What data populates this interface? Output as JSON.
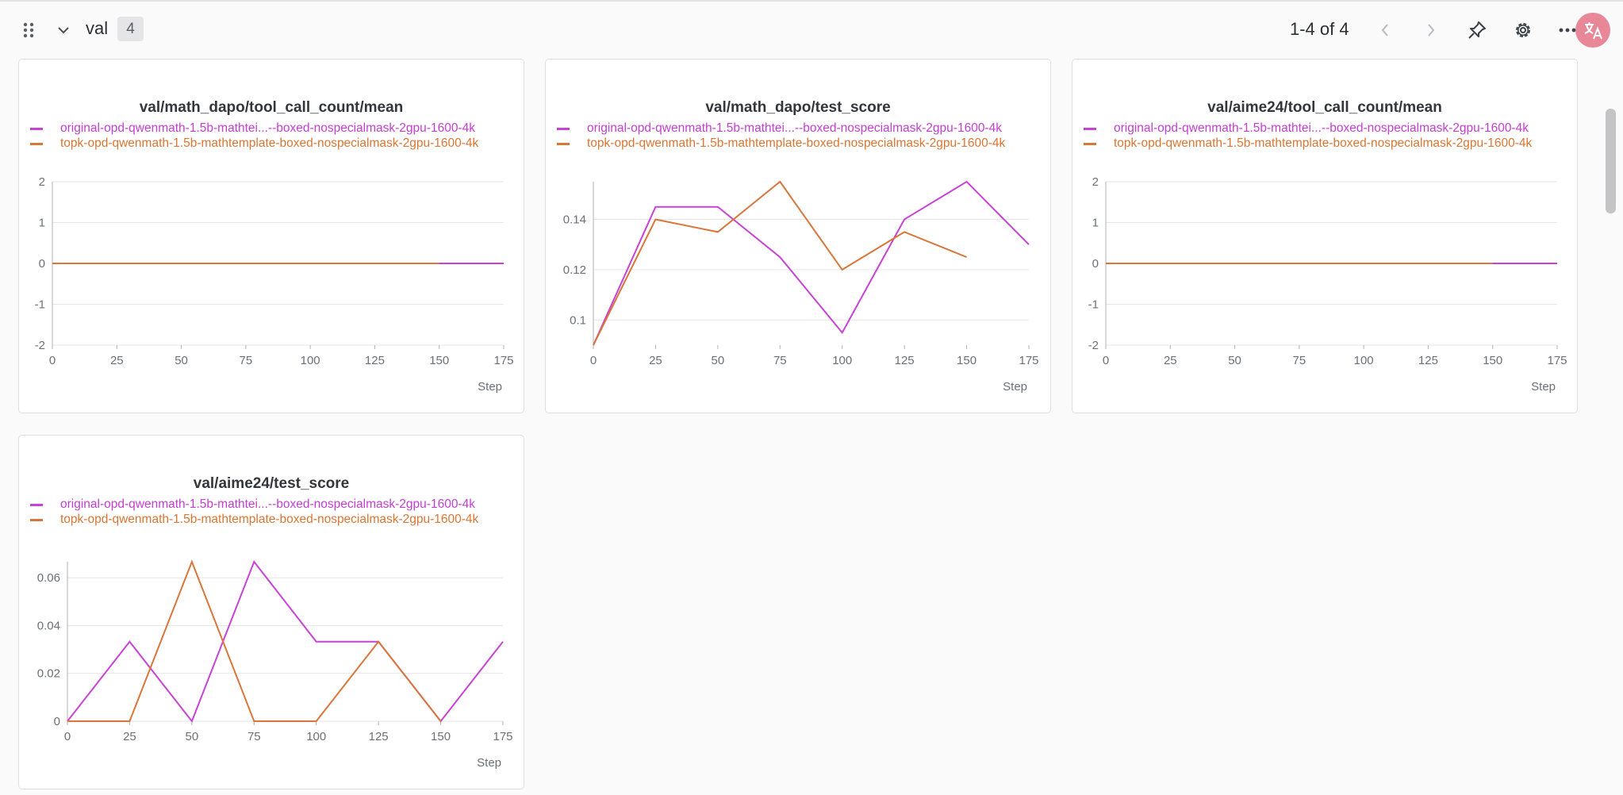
{
  "header": {
    "section_title": "val",
    "section_count": "4",
    "pagination_text": "1-4 of 4",
    "icons": [
      "drag-handle-icon",
      "chevron-down-icon",
      "chevron-left-icon",
      "chevron-right-icon",
      "pin-icon",
      "gear-icon",
      "more-icon",
      "translate-icon"
    ]
  },
  "colors": {
    "series0": "#c942d6",
    "series1": "#d9773a",
    "grid": "#e6e6e9",
    "axis": "#aeb2b8"
  },
  "series_names": [
    "original-opd-qwenmath-1.5b-mathtei...‑-boxed-nospecialmask-2gpu-1600-4k",
    "topk-opd-qwenmath-1.5b-mathtemplate-boxed-nospecialmask-2gpu-1600-4k"
  ],
  "chart_data": [
    {
      "type": "line",
      "title": "val/math_dapo/tool_call_count/mean",
      "xlabel": "Step",
      "xlim": [
        0,
        175
      ],
      "xticks": [
        0,
        25,
        50,
        75,
        100,
        125,
        150,
        175
      ],
      "ylim": [
        -2,
        2
      ],
      "yticks": [
        {
          "v": -2,
          "label": "-2"
        },
        {
          "v": -1,
          "label": "-1"
        },
        {
          "v": 0,
          "label": "0"
        },
        {
          "v": 1,
          "label": "1"
        },
        {
          "v": 2,
          "label": "2"
        }
      ],
      "legend": "top",
      "grid": true,
      "series": [
        {
          "x": [
            0,
            25,
            50,
            75,
            100,
            125,
            150,
            175
          ],
          "y": [
            0,
            0,
            0,
            0,
            0,
            0,
            0,
            0
          ]
        },
        {
          "x": [
            0,
            25,
            50,
            75,
            100,
            125,
            150
          ],
          "y": [
            0,
            0,
            0,
            0,
            0,
            0,
            0
          ]
        }
      ]
    },
    {
      "type": "line",
      "title": "val/math_dapo/test_score",
      "xlabel": "Step",
      "xlim": [
        0,
        175
      ],
      "xticks": [
        0,
        25,
        50,
        75,
        100,
        125,
        150,
        175
      ],
      "ylim": [
        0.09,
        0.155
      ],
      "yticks": [
        {
          "v": 0.1,
          "label": "0.1"
        },
        {
          "v": 0.12,
          "label": "0.12"
        },
        {
          "v": 0.14,
          "label": "0.14"
        }
      ],
      "legend": "top",
      "grid": true,
      "series": [
        {
          "x": [
            0,
            25,
            50,
            75,
            100,
            125,
            150,
            175
          ],
          "y": [
            0.09,
            0.145,
            0.145,
            0.125,
            0.095,
            0.14,
            0.155,
            0.13
          ]
        },
        {
          "x": [
            0,
            25,
            50,
            75,
            100,
            125,
            150
          ],
          "y": [
            0.09,
            0.14,
            0.135,
            0.155,
            0.12,
            0.135,
            0.125
          ]
        }
      ]
    },
    {
      "type": "line",
      "title": "val/aime24/tool_call_count/mean",
      "xlabel": "Step",
      "xlim": [
        0,
        175
      ],
      "xticks": [
        0,
        25,
        50,
        75,
        100,
        125,
        150,
        175
      ],
      "ylim": [
        -2,
        2
      ],
      "yticks": [
        {
          "v": -2,
          "label": "-2"
        },
        {
          "v": -1,
          "label": "-1"
        },
        {
          "v": 0,
          "label": "0"
        },
        {
          "v": 1,
          "label": "1"
        },
        {
          "v": 2,
          "label": "2"
        }
      ],
      "legend": "top",
      "grid": true,
      "series": [
        {
          "x": [
            0,
            25,
            50,
            75,
            100,
            125,
            150,
            175
          ],
          "y": [
            0,
            0,
            0,
            0,
            0,
            0,
            0,
            0
          ]
        },
        {
          "x": [
            0,
            25,
            50,
            75,
            100,
            125,
            150
          ],
          "y": [
            0,
            0,
            0,
            0,
            0,
            0,
            0
          ]
        }
      ]
    },
    {
      "type": "line",
      "title": "val/aime24/test_score",
      "xlabel": "Step",
      "xlim": [
        0,
        175
      ],
      "xticks": [
        0,
        25,
        50,
        75,
        100,
        125,
        150,
        175
      ],
      "ylim": [
        0,
        0.0667
      ],
      "yticks": [
        {
          "v": 0,
          "label": "0"
        },
        {
          "v": 0.02,
          "label": "0.02"
        },
        {
          "v": 0.04,
          "label": "0.04"
        },
        {
          "v": 0.06,
          "label": "0.06"
        }
      ],
      "legend": "top",
      "grid": true,
      "series": [
        {
          "x": [
            0,
            25,
            50,
            75,
            100,
            125,
            150,
            175
          ],
          "y": [
            0,
            0.0333,
            0,
            0.0667,
            0.0333,
            0.0333,
            0,
            0.0333
          ]
        },
        {
          "x": [
            0,
            25,
            50,
            75,
            100,
            125,
            150
          ],
          "y": [
            0,
            0,
            0.0667,
            0,
            0,
            0.0333,
            0
          ]
        }
      ]
    }
  ]
}
